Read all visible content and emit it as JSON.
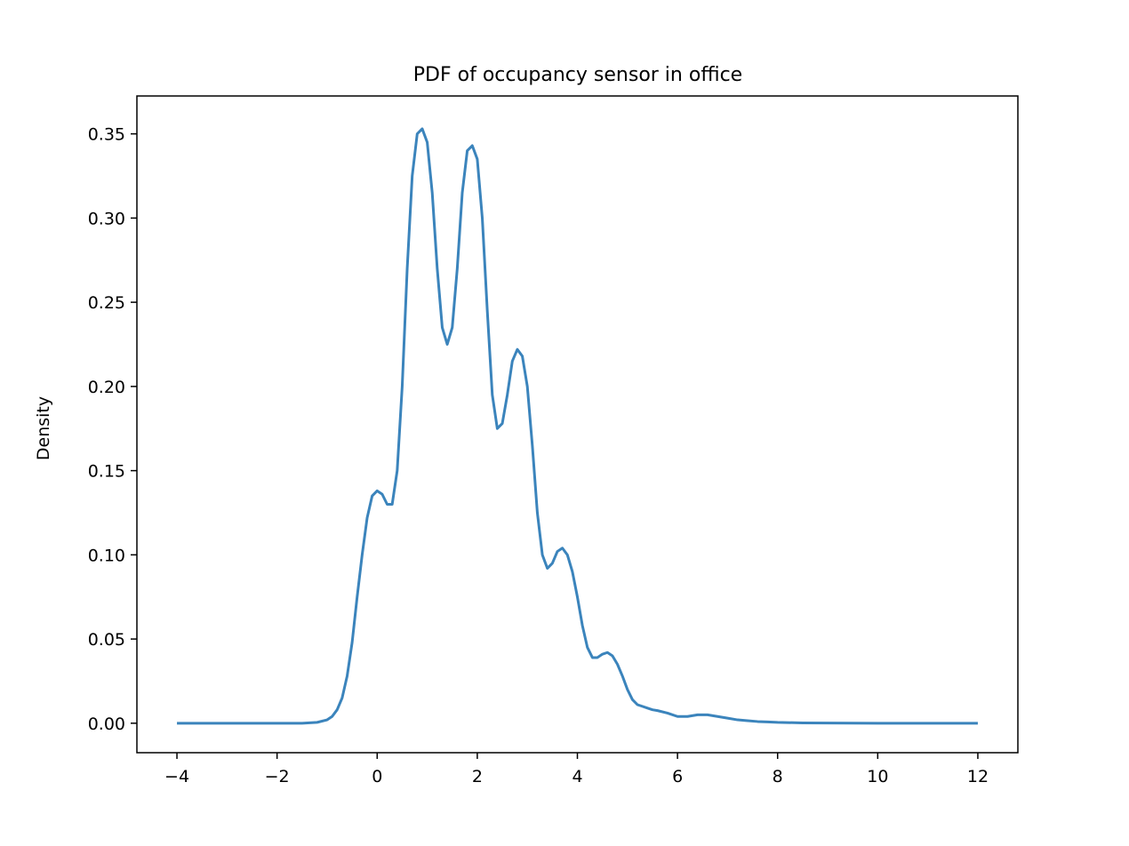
{
  "chart_data": {
    "type": "line",
    "title": "PDF of occupancy sensor in office",
    "xlabel": "",
    "ylabel": "Density",
    "xlim": [
      -4.8,
      12.8
    ],
    "ylim": [
      -0.0175,
      0.3725
    ],
    "xticks": [
      -4,
      -2,
      0,
      2,
      4,
      6,
      8,
      10,
      12
    ],
    "xtick_labels": [
      "−4",
      "−2",
      "0",
      "2",
      "4",
      "6",
      "8",
      "10",
      "12"
    ],
    "yticks": [
      0.0,
      0.05,
      0.1,
      0.15,
      0.2,
      0.25,
      0.3,
      0.35
    ],
    "ytick_labels": [
      "0.00",
      "0.05",
      "0.10",
      "0.15",
      "0.20",
      "0.25",
      "0.30",
      "0.35"
    ],
    "grid": false,
    "legend": null,
    "series": [
      {
        "color": "#3b84bc",
        "x": [
          -4.0,
          -3.0,
          -2.0,
          -1.5,
          -1.2,
          -1.0,
          -0.9,
          -0.8,
          -0.7,
          -0.6,
          -0.5,
          -0.4,
          -0.3,
          -0.2,
          -0.1,
          0.0,
          0.1,
          0.2,
          0.3,
          0.4,
          0.5,
          0.6,
          0.7,
          0.8,
          0.9,
          1.0,
          1.1,
          1.2,
          1.3,
          1.4,
          1.5,
          1.6,
          1.7,
          1.8,
          1.9,
          2.0,
          2.1,
          2.2,
          2.3,
          2.4,
          2.5,
          2.6,
          2.7,
          2.8,
          2.9,
          3.0,
          3.1,
          3.2,
          3.3,
          3.4,
          3.5,
          3.6,
          3.7,
          3.8,
          3.9,
          4.0,
          4.1,
          4.2,
          4.3,
          4.4,
          4.5,
          4.6,
          4.7,
          4.8,
          4.9,
          5.0,
          5.1,
          5.2,
          5.3,
          5.4,
          5.5,
          5.6,
          5.8,
          6.0,
          6.2,
          6.4,
          6.6,
          6.8,
          7.0,
          7.2,
          7.4,
          7.6,
          7.8,
          8.0,
          8.5,
          9.0,
          10.0,
          11.0,
          12.0
        ],
        "y": [
          0.0,
          0.0,
          0.0,
          0.0,
          0.0005,
          0.002,
          0.004,
          0.008,
          0.015,
          0.028,
          0.048,
          0.075,
          0.1,
          0.122,
          0.135,
          0.138,
          0.136,
          0.13,
          0.13,
          0.15,
          0.2,
          0.27,
          0.325,
          0.35,
          0.353,
          0.345,
          0.315,
          0.27,
          0.235,
          0.225,
          0.235,
          0.27,
          0.315,
          0.34,
          0.343,
          0.335,
          0.3,
          0.245,
          0.195,
          0.175,
          0.178,
          0.195,
          0.215,
          0.222,
          0.218,
          0.2,
          0.165,
          0.125,
          0.1,
          0.092,
          0.095,
          0.102,
          0.104,
          0.1,
          0.09,
          0.075,
          0.058,
          0.045,
          0.039,
          0.039,
          0.041,
          0.042,
          0.04,
          0.035,
          0.028,
          0.02,
          0.014,
          0.011,
          0.01,
          0.009,
          0.008,
          0.0075,
          0.006,
          0.004,
          0.004,
          0.005,
          0.005,
          0.004,
          0.003,
          0.002,
          0.0015,
          0.001,
          0.0008,
          0.0005,
          0.0002,
          0.0001,
          0.0,
          0.0,
          0.0
        ]
      }
    ]
  }
}
